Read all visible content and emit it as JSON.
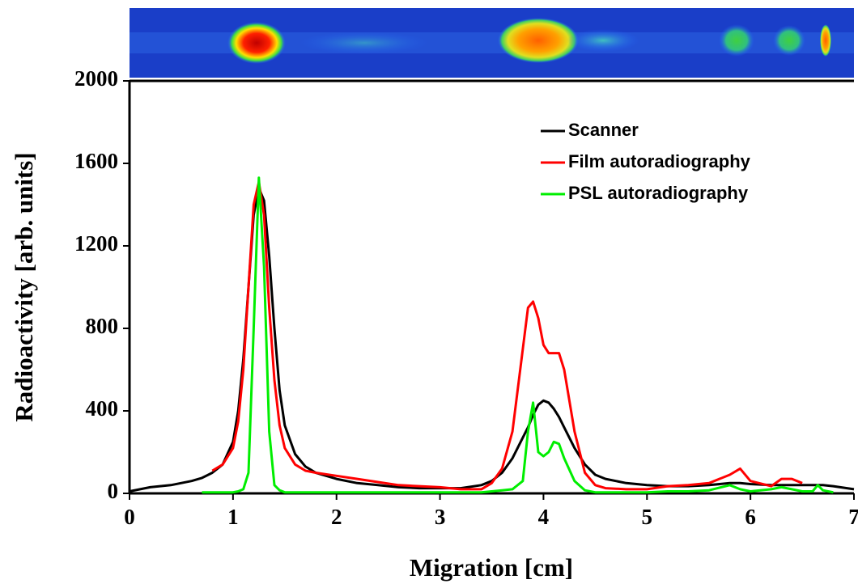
{
  "chart_data": {
    "type": "line",
    "xlabel": "Migration [cm]",
    "ylabel": "Radioactivity [arb. units]",
    "x": [
      0,
      0.2,
      0.4,
      0.6,
      0.7,
      0.8,
      0.9,
      1.0,
      1.05,
      1.1,
      1.15,
      1.2,
      1.25,
      1.3,
      1.35,
      1.4,
      1.45,
      1.5,
      1.6,
      1.7,
      1.8,
      2.0,
      2.2,
      2.4,
      2.6,
      2.8,
      3.0,
      3.2,
      3.4,
      3.5,
      3.6,
      3.7,
      3.8,
      3.85,
      3.9,
      3.95,
      4.0,
      4.05,
      4.1,
      4.15,
      4.2,
      4.3,
      4.4,
      4.5,
      4.6,
      4.8,
      5.0,
      5.2,
      5.4,
      5.6,
      5.8,
      5.9,
      6.0,
      6.2,
      6.3,
      6.4,
      6.5,
      6.6,
      6.65,
      6.7,
      6.8,
      7.0
    ],
    "series": [
      {
        "name": "Scanner",
        "color": "#000000",
        "values": [
          10,
          30,
          40,
          60,
          75,
          100,
          140,
          250,
          400,
          650,
          1000,
          1350,
          1480,
          1420,
          1150,
          800,
          500,
          330,
          190,
          130,
          100,
          70,
          50,
          40,
          30,
          25,
          25,
          25,
          40,
          60,
          100,
          170,
          270,
          320,
          380,
          430,
          450,
          440,
          410,
          370,
          320,
          220,
          140,
          90,
          70,
          50,
          40,
          35,
          35,
          40,
          50,
          50,
          45,
          40,
          40,
          40,
          40,
          40,
          40,
          40,
          35,
          20
        ]
      },
      {
        "name": "Film autoradiography",
        "color": "#ff0000",
        "values": [
          null,
          null,
          null,
          null,
          null,
          110,
          140,
          220,
          350,
          600,
          1000,
          1400,
          1510,
          1350,
          900,
          550,
          330,
          220,
          140,
          110,
          100,
          85,
          70,
          55,
          40,
          35,
          30,
          20,
          20,
          50,
          120,
          300,
          700,
          900,
          930,
          850,
          720,
          680,
          680,
          680,
          600,
          300,
          100,
          40,
          25,
          20,
          20,
          35,
          40,
          50,
          90,
          120,
          60,
          35,
          70,
          70,
          50,
          null,
          null,
          null,
          null,
          null
        ]
      },
      {
        "name": "PSL autoradiography",
        "color": "#00ee00",
        "values": [
          null,
          null,
          null,
          null,
          5,
          5,
          5,
          5,
          10,
          20,
          100,
          800,
          1530,
          1100,
          300,
          40,
          15,
          5,
          5,
          5,
          5,
          5,
          5,
          5,
          5,
          5,
          5,
          5,
          5,
          10,
          15,
          20,
          60,
          300,
          440,
          200,
          180,
          200,
          250,
          240,
          170,
          60,
          15,
          5,
          5,
          5,
          5,
          10,
          10,
          15,
          40,
          20,
          10,
          20,
          30,
          20,
          10,
          10,
          40,
          15,
          5,
          null
        ]
      }
    ],
    "xlim": [
      0,
      7
    ],
    "xticks": [
      0,
      1,
      2,
      3,
      4,
      5,
      6,
      7
    ],
    "ylim": [
      0,
      2000
    ],
    "yticks": [
      0,
      400,
      800,
      1200,
      1600,
      2000
    ],
    "grid": false,
    "legend": "upper right"
  }
}
